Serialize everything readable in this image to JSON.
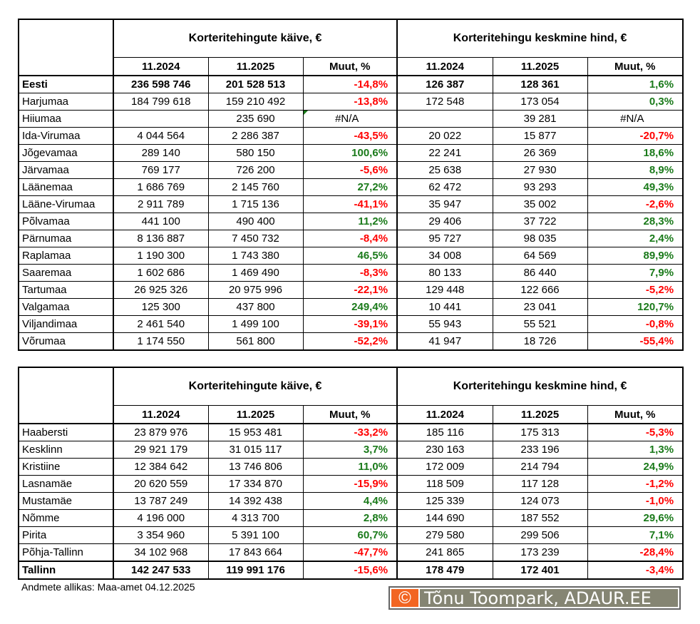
{
  "colors": {
    "positive": "#1a7a1a",
    "negative": "#ff0000",
    "neutral": "#000000",
    "logo_orange": "#f26522",
    "logo_gray": "#858573"
  },
  "table1": {
    "group1": "Korteritehingute käive, €",
    "group2": "Korteritehingu keskmine hind, €",
    "cols": [
      "11.2024",
      "11.2025",
      "Muut, %",
      "11.2024",
      "11.2025",
      "Muut, %"
    ],
    "rows": [
      {
        "total": true,
        "cells": [
          "Eesti",
          "236 598 746",
          "201 528 513",
          "-14,8%",
          "126 387",
          "128 361",
          "1,6%"
        ]
      },
      {
        "cells": [
          "Harjumaa",
          "184 799 618",
          "159 210 492",
          "-13,8%",
          "172 548",
          "173 054",
          "0,3%"
        ]
      },
      {
        "cells": [
          "Hiiumaa",
          "",
          "235 690",
          "#N/A",
          "",
          "39 281",
          "#N/A"
        ]
      },
      {
        "cells": [
          "Ida-Virumaa",
          "4 044 564",
          "2 286 387",
          "-43,5%",
          "20 022",
          "15 877",
          "-20,7%"
        ]
      },
      {
        "cells": [
          "Jõgevamaa",
          "289 140",
          "580 150",
          "100,6%",
          "22 241",
          "26 369",
          "18,6%"
        ]
      },
      {
        "cells": [
          "Järvamaa",
          "769 177",
          "726 200",
          "-5,6%",
          "25 638",
          "27 930",
          "8,9%"
        ]
      },
      {
        "cells": [
          "Läänemaa",
          "1 686 769",
          "2 145 760",
          "27,2%",
          "62 472",
          "93 293",
          "49,3%"
        ]
      },
      {
        "cells": [
          "Lääne-Virumaa",
          "2 911 789",
          "1 715 136",
          "-41,1%",
          "35 947",
          "35 002",
          "-2,6%"
        ]
      },
      {
        "cells": [
          "Põlvamaa",
          "441 100",
          "490 400",
          "11,2%",
          "29 406",
          "37 722",
          "28,3%"
        ]
      },
      {
        "cells": [
          "Pärnumaa",
          "8 136 887",
          "7 450 732",
          "-8,4%",
          "95 727",
          "98 035",
          "2,4%"
        ]
      },
      {
        "cells": [
          "Raplamaa",
          "1 190 300",
          "1 743 380",
          "46,5%",
          "34 008",
          "64 569",
          "89,9%"
        ]
      },
      {
        "cells": [
          "Saaremaa",
          "1 602 686",
          "1 469 490",
          "-8,3%",
          "80 133",
          "86 440",
          "7,9%"
        ]
      },
      {
        "cells": [
          "Tartumaa",
          "26 925 326",
          "20 975 996",
          "-22,1%",
          "129 448",
          "122 666",
          "-5,2%"
        ]
      },
      {
        "cells": [
          "Valgamaa",
          "125 300",
          "437 800",
          "249,4%",
          "10 441",
          "23 041",
          "120,7%"
        ]
      },
      {
        "cells": [
          "Viljandimaa",
          "2 461 540",
          "1 499 100",
          "-39,1%",
          "55 943",
          "55 521",
          "-0,8%"
        ]
      },
      {
        "cells": [
          "Võrumaa",
          "1 174 550",
          "561 800",
          "-52,2%",
          "41 947",
          "18 726",
          "-55,4%"
        ]
      }
    ]
  },
  "table2": {
    "group1": "Korteritehingute käive, €",
    "group2": "Korteritehingu keskmine hind, €",
    "cols": [
      "11.2024",
      "11.2025",
      "Muut, %",
      "11.2024",
      "11.2025",
      "Muut, %"
    ],
    "rows": [
      {
        "cells": [
          "Haabersti",
          "23 879 976",
          "15 953 481",
          "-33,2%",
          "185 116",
          "175 313",
          "-5,3%"
        ]
      },
      {
        "cells": [
          "Kesklinn",
          "29 921 179",
          "31 015 117",
          "3,7%",
          "230 163",
          "233 196",
          "1,3%"
        ]
      },
      {
        "cells": [
          "Kristiine",
          "12 384 642",
          "13 746 806",
          "11,0%",
          "172 009",
          "214 794",
          "24,9%"
        ]
      },
      {
        "cells": [
          "Lasnamäe",
          "20 620 559",
          "17 334 870",
          "-15,9%",
          "118 509",
          "117 128",
          "-1,2%"
        ]
      },
      {
        "cells": [
          "Mustamäe",
          "13 787 249",
          "14 392 438",
          "4,4%",
          "125 339",
          "124 073",
          "-1,0%"
        ]
      },
      {
        "cells": [
          "Nõmme",
          "4 196 000",
          "4 313 700",
          "2,8%",
          "144 690",
          "187 552",
          "29,6%"
        ]
      },
      {
        "cells": [
          "Pirita",
          "3 354 960",
          "5 391 100",
          "60,7%",
          "279 580",
          "299 506",
          "7,1%"
        ]
      },
      {
        "cells": [
          "Põhja-Tallinn",
          "34 102 968",
          "17 843 664",
          "-47,7%",
          "241 865",
          "173 239",
          "-28,4%"
        ]
      },
      {
        "total": true,
        "cells": [
          "Tallinn",
          "142 247 533",
          "119 991 176",
          "-15,6%",
          "178 479",
          "172 401",
          "-3,4%"
        ]
      }
    ]
  },
  "footer": {
    "source": "Andmete allikas: Maa-amet 04.12.2025",
    "logo_symbol": "©",
    "logo_text": "Tõnu Toompark, ADAUR.EE"
  }
}
